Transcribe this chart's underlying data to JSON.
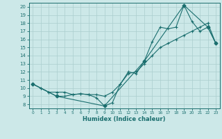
{
  "xlabel": "Humidex (Indice chaleur)",
  "bg_color": "#cce8e8",
  "line_color": "#1a6e6e",
  "grid_color": "#aacece",
  "xlim": [
    -0.5,
    23.5
  ],
  "ylim": [
    7.5,
    20.5
  ],
  "yticks": [
    8,
    9,
    10,
    11,
    12,
    13,
    14,
    15,
    16,
    17,
    18,
    19,
    20
  ],
  "xticks": [
    0,
    1,
    2,
    3,
    4,
    5,
    6,
    7,
    8,
    9,
    10,
    11,
    12,
    13,
    14,
    15,
    16,
    17,
    18,
    19,
    20,
    21,
    22,
    23
  ],
  "series1_x": [
    0,
    1,
    2,
    3,
    4,
    5,
    6,
    7,
    8,
    9,
    10,
    11,
    12,
    13,
    14,
    15,
    16,
    17,
    18,
    19,
    20,
    21,
    22,
    23
  ],
  "series1_y": [
    10.5,
    10.0,
    9.5,
    9.0,
    9.0,
    9.2,
    9.3,
    9.2,
    8.8,
    7.8,
    8.2,
    10.5,
    12.0,
    11.8,
    13.3,
    15.7,
    17.5,
    17.3,
    17.5,
    20.2,
    18.2,
    17.0,
    17.5,
    15.5
  ],
  "series2_x": [
    0,
    1,
    2,
    3,
    4,
    5,
    6,
    7,
    8,
    9,
    10,
    11,
    12,
    13,
    14,
    15,
    16,
    17,
    18,
    19,
    20,
    21,
    22,
    23
  ],
  "series2_y": [
    10.5,
    10.0,
    9.5,
    9.5,
    9.5,
    9.2,
    9.3,
    9.2,
    9.2,
    9.0,
    9.5,
    10.5,
    11.8,
    12.0,
    13.0,
    14.0,
    15.0,
    15.5,
    16.0,
    16.5,
    17.0,
    17.5,
    18.0,
    15.5
  ],
  "series3_x": [
    0,
    3,
    9,
    14,
    19,
    22,
    23
  ],
  "series3_y": [
    10.5,
    9.0,
    7.8,
    13.3,
    20.2,
    17.5,
    15.5
  ]
}
